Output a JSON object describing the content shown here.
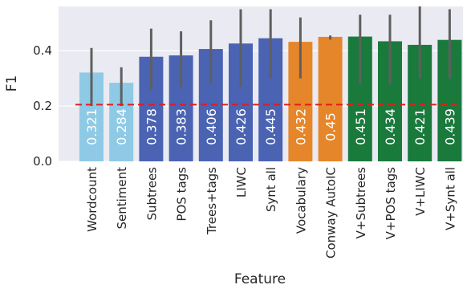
{
  "chart_data": {
    "type": "bar",
    "title": "",
    "xlabel": "Feature",
    "ylabel": "F1",
    "ylim": [
      0.0,
      0.56
    ],
    "yticks": [
      0.0,
      0.2,
      0.4
    ],
    "ytick_labels": [
      "0.0",
      "0.2",
      "0.4"
    ],
    "grid": true,
    "baseline": 0.205,
    "categories": [
      "Wordcount",
      "Sentiment",
      "Subtrees",
      "POS tags",
      "Trees+tags",
      "LIWC",
      "Synt all",
      "Vocabulary",
      "Conway AutoIC",
      "V+Subtrees",
      "V+POS tags",
      "V+LIWC",
      "V+Synt all"
    ],
    "values": [
      0.321,
      0.284,
      0.378,
      0.383,
      0.406,
      0.426,
      0.445,
      0.432,
      0.45,
      0.451,
      0.434,
      0.421,
      0.439
    ],
    "value_labels": [
      "0.321",
      "0.284",
      "0.378",
      "0.383",
      "0.406",
      "0.426",
      "0.445",
      "0.432",
      "0.45",
      "0.451",
      "0.434",
      "0.421",
      "0.439"
    ],
    "error_low": [
      0.2,
      0.2,
      0.26,
      0.27,
      0.28,
      0.27,
      0.3,
      0.3,
      0.44,
      0.28,
      0.28,
      0.3,
      0.3
    ],
    "error_high": [
      0.41,
      0.34,
      0.48,
      0.47,
      0.51,
      0.55,
      0.55,
      0.52,
      0.455,
      0.53,
      0.53,
      0.56,
      0.55
    ],
    "colors": [
      "#8ecae6",
      "#8ecae6",
      "#4a63b3",
      "#4a63b3",
      "#4a63b3",
      "#4a63b3",
      "#4a63b3",
      "#e6862a",
      "#e6862a",
      "#1a7a3c",
      "#1a7a3c",
      "#1a7a3c",
      "#1a7a3c"
    ],
    "plot_background": "#eaeaf2",
    "errorbar_color": "#5f5f5f",
    "baseline_color": "#e41a1c"
  }
}
